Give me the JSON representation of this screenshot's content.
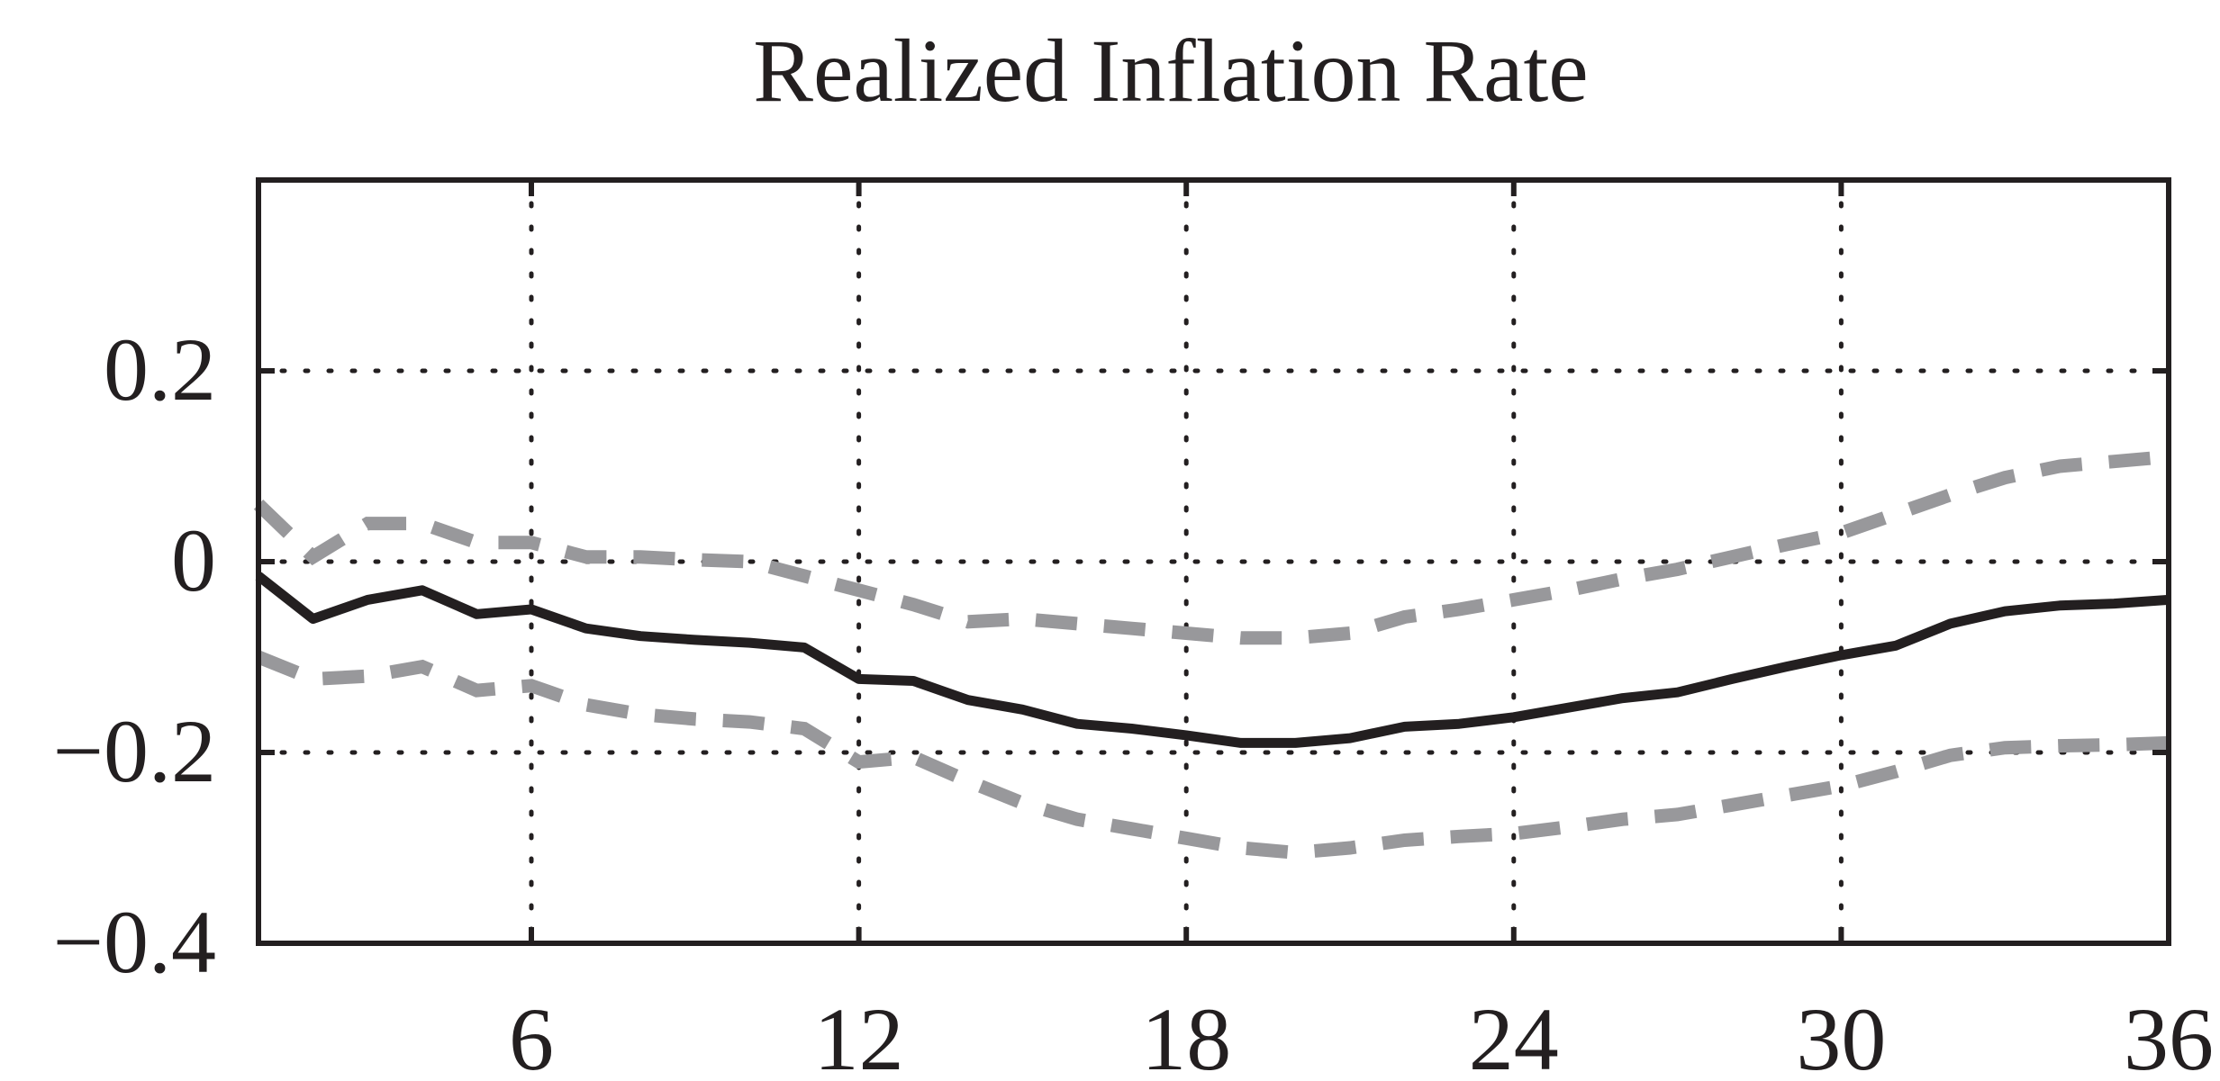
{
  "chart_data": {
    "type": "line",
    "title": "Realized Inflation Rate",
    "xlabel": "",
    "ylabel": "",
    "xlim": [
      1,
      36
    ],
    "ylim": [
      -0.4,
      0.4
    ],
    "xticks": [
      6,
      12,
      18,
      24,
      30,
      36
    ],
    "xtick_labels": [
      "6",
      "12",
      "18",
      "24",
      "30",
      "36"
    ],
    "yticks": [
      -0.4,
      -0.2,
      0,
      0.2
    ],
    "ytick_labels": [
      "−0.4",
      "−0.2",
      "0",
      "0.2"
    ],
    "grid": true,
    "legend": "none",
    "x": [
      1,
      2,
      3,
      4,
      5,
      6,
      7,
      8,
      9,
      10,
      11,
      12,
      13,
      14,
      15,
      16,
      17,
      18,
      19,
      20,
      21,
      22,
      23,
      24,
      25,
      26,
      27,
      28,
      29,
      30,
      31,
      32,
      33,
      34,
      35,
      36
    ],
    "series": [
      {
        "role": "estimate",
        "style": "solid",
        "color": "#231f20",
        "values": [
          -0.015,
          -0.06,
          -0.04,
          -0.03,
          -0.055,
          -0.05,
          -0.07,
          -0.078,
          -0.082,
          -0.085,
          -0.09,
          -0.123,
          -0.125,
          -0.145,
          -0.155,
          -0.17,
          -0.175,
          -0.182,
          -0.19,
          -0.19,
          -0.185,
          -0.173,
          -0.17,
          -0.163,
          -0.153,
          -0.143,
          -0.137,
          -0.123,
          -0.11,
          -0.098,
          -0.088,
          -0.065,
          -0.052,
          -0.046,
          -0.044,
          -0.04
        ]
      },
      {
        "role": "upper-band",
        "style": "dashed",
        "color": "#98989b",
        "values": [
          0.06,
          0.005,
          0.04,
          0.04,
          0.02,
          0.02,
          0.005,
          0.005,
          0.002,
          0.0,
          -0.015,
          -0.03,
          -0.045,
          -0.063,
          -0.06,
          -0.065,
          -0.07,
          -0.075,
          -0.08,
          -0.08,
          -0.075,
          -0.058,
          -0.05,
          -0.04,
          -0.03,
          -0.018,
          -0.008,
          0.005,
          0.018,
          0.03,
          0.05,
          0.07,
          0.088,
          0.1,
          0.105,
          0.11
        ]
      },
      {
        "role": "lower-band",
        "style": "dashed",
        "color": "#98989b",
        "values": [
          -0.1,
          -0.123,
          -0.12,
          -0.11,
          -0.135,
          -0.13,
          -0.15,
          -0.16,
          -0.165,
          -0.168,
          -0.175,
          -0.21,
          -0.205,
          -0.23,
          -0.253,
          -0.27,
          -0.28,
          -0.29,
          -0.3,
          -0.305,
          -0.3,
          -0.292,
          -0.288,
          -0.285,
          -0.278,
          -0.27,
          -0.265,
          -0.255,
          -0.245,
          -0.235,
          -0.22,
          -0.203,
          -0.195,
          -0.193,
          -0.192,
          -0.19
        ]
      }
    ]
  }
}
